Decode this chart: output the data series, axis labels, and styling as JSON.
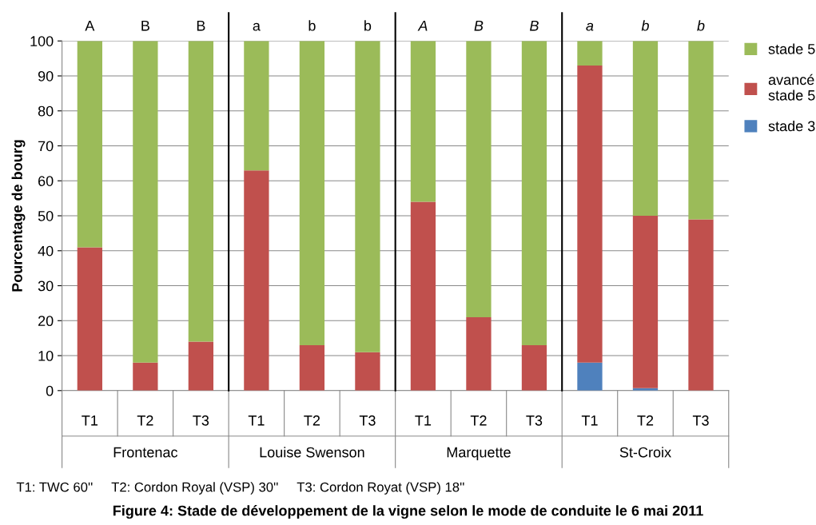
{
  "chart_data": {
    "type": "bar",
    "stacked": true,
    "title": "Figure 4: Stade de développement de la vigne selon le mode de conduite le 6 mai 2011",
    "ylabel": "Pourcentage de bourg",
    "categories": [
      "T1",
      "T2",
      "T3",
      "T1",
      "T2",
      "T3",
      "T1",
      "T2",
      "T3",
      "T1",
      "T2",
      "T3"
    ],
    "series": [
      {
        "name": "stade 3",
        "color": "#4f81bd",
        "values": [
          0,
          0,
          0,
          0,
          0,
          0,
          0,
          0,
          0,
          8,
          0.7,
          0
        ]
      },
      {
        "name": "avancé\nstade 5",
        "color": "#c0504d",
        "values": [
          41,
          8,
          14,
          63,
          13,
          11,
          54,
          21,
          13,
          85,
          49.3,
          49
        ]
      },
      {
        "name": "stade 5",
        "color": "#9bbb59",
        "values": [
          59,
          92,
          86,
          37,
          87,
          89,
          46,
          79,
          87,
          7,
          50,
          51
        ]
      }
    ],
    "ylim": [
      0,
      100
    ],
    "yticks": [
      0,
      10,
      20,
      30,
      40,
      50,
      60,
      70,
      80,
      90,
      100
    ],
    "grid": "y",
    "legend": "top right",
    "annotations": [
      "A",
      "B",
      "B",
      "a",
      "b",
      "b",
      "A",
      "B",
      "B",
      "a",
      "b",
      "b",
      "Frontenac",
      "Louise Swenson",
      "Marquette",
      "St-Croix",
      "T1: TWC 60''     T2: Cordon Royal (VSP) 30''     T3: Cordon Royat (VSP) 18''"
    ]
  }
}
